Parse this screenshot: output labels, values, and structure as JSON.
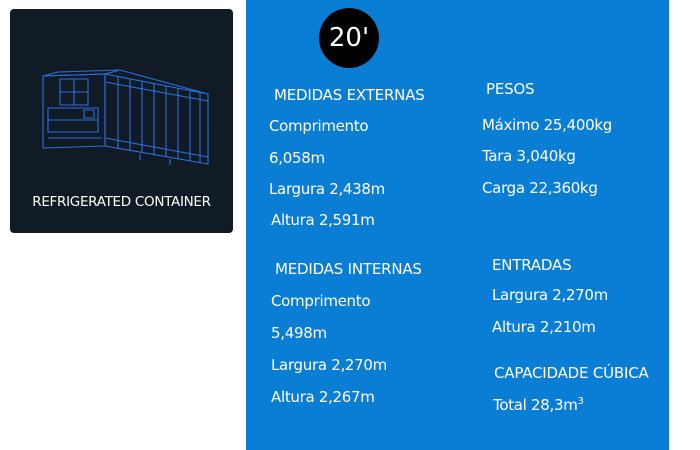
{
  "product": {
    "title": "REFRIGERATED CONTAINER",
    "image_icon": "refrigerated-container-wireframe-icon"
  },
  "badge": {
    "size": "20'"
  },
  "external": {
    "heading": "MEDIDAS EXTERNAS",
    "length_label": "Comprimento",
    "length_value": "6,058m",
    "width": "Largura 2,438m",
    "height": "Altura 2,591m"
  },
  "internal": {
    "heading": "MEDIDAS INTERNAS",
    "length_label": "Comprimento",
    "length_value": "5,498m",
    "width": "Largura 2,270m",
    "height": "Altura 2,267m"
  },
  "weights": {
    "heading": "PESOS",
    "max": "Máximo 25,400kg",
    "tare": "Tara 3,040kg",
    "payload": "Carga 22,360kg"
  },
  "entrances": {
    "heading": "ENTRADAS",
    "width": "Largura 2,270m",
    "height": "Altura 2,210m"
  },
  "capacity": {
    "heading": "CAPACIDADE CÚBICA",
    "total": "Total 28,3m",
    "unit_exponent": "3"
  },
  "colors": {
    "panel": "#0a7ed4",
    "card": "#101b26",
    "wireframe": "#2c6fe0",
    "badge": "#000000"
  }
}
